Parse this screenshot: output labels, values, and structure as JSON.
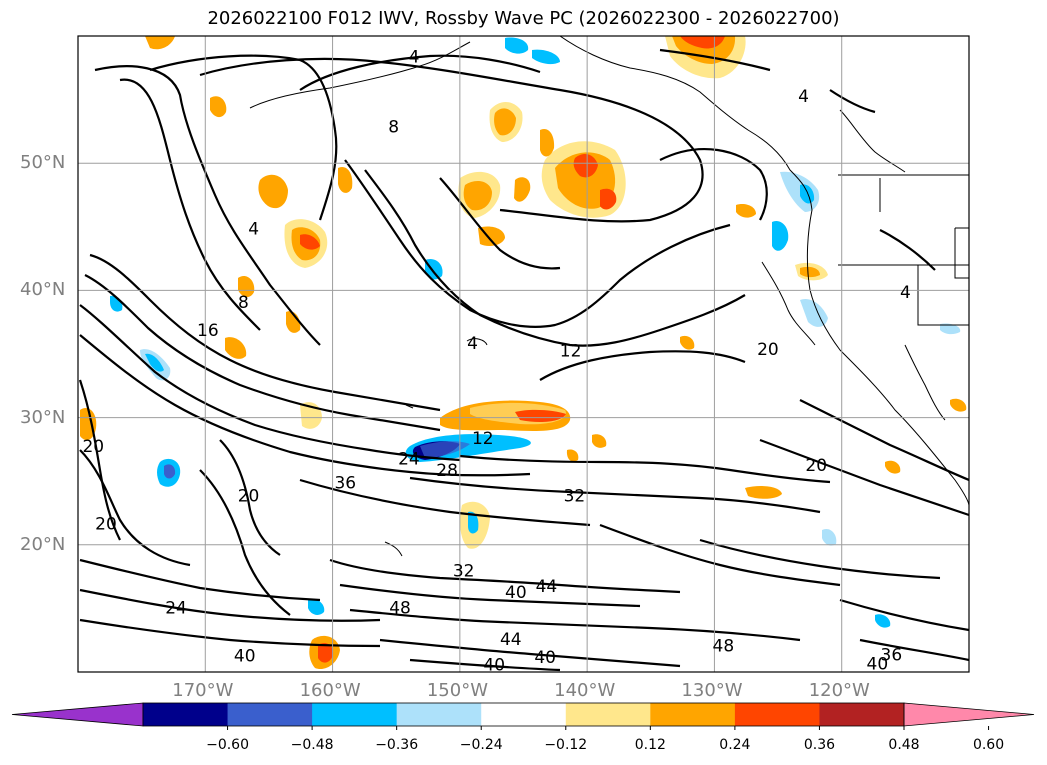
{
  "title": "2026022100 F012 IWV, Rossby Wave PC (2026022300 - 2026022700)",
  "lat_labels": [
    {
      "text": "50°N",
      "lat": 50
    },
    {
      "text": "40°N",
      "lat": 40
    },
    {
      "text": "30°N",
      "lat": 30
    },
    {
      "text": "20°N",
      "lat": 20
    }
  ],
  "lon_labels": [
    {
      "text": "170°W",
      "lon": -170
    },
    {
      "text": "160°W",
      "lon": -160
    },
    {
      "text": "150°W",
      "lon": -150
    },
    {
      "text": "140°W",
      "lon": -140
    },
    {
      "text": "130°W",
      "lon": -130
    },
    {
      "text": "120°W",
      "lon": -120
    }
  ],
  "map_extent": {
    "lon_min": -180,
    "lon_max": -110,
    "lat_min": 10,
    "lat_max": 60
  },
  "colorbar": {
    "colors": [
      "#9932CC",
      "#00008B",
      "#3A5FCD",
      "#00BFFF",
      "#ADE1FA",
      "#FFFFFF",
      "#FFE78C",
      "#FFA500",
      "#FF4500",
      "#B22222",
      "#FF88AA"
    ],
    "tick_labels": [
      "−0.60",
      "−0.48",
      "−0.36",
      "−0.24",
      "−0.12",
      "0.12",
      "0.24",
      "0.36",
      "0.48",
      "0.60"
    ]
  },
  "contour_labels": [
    {
      "text": "4",
      "lon": -153.6,
      "lat": 58.3
    },
    {
      "text": "8",
      "lon": -155.2,
      "lat": 52.8
    },
    {
      "text": "4",
      "lon": -166.2,
      "lat": 44.8
    },
    {
      "text": "8",
      "lon": -167.0,
      "lat": 39.0
    },
    {
      "text": "16",
      "lon": -169.8,
      "lat": 36.8
    },
    {
      "text": "4",
      "lon": -149.0,
      "lat": 35.8
    },
    {
      "text": "12",
      "lon": -141.3,
      "lat": 35.2
    },
    {
      "text": "20",
      "lon": -125.8,
      "lat": 35.3
    },
    {
      "text": "4",
      "lon": -123.0,
      "lat": 55.2
    },
    {
      "text": "4",
      "lon": -115.0,
      "lat": 39.8
    },
    {
      "text": "20",
      "lon": -178.8,
      "lat": 27.7
    },
    {
      "text": "12",
      "lon": -148.2,
      "lat": 28.3
    },
    {
      "text": "24",
      "lon": -154.0,
      "lat": 26.7
    },
    {
      "text": "28",
      "lon": -151.0,
      "lat": 25.8
    },
    {
      "text": "20",
      "lon": -122.0,
      "lat": 26.2
    },
    {
      "text": "36",
      "lon": -159.0,
      "lat": 24.8
    },
    {
      "text": "20",
      "lon": -166.6,
      "lat": 23.8
    },
    {
      "text": "32",
      "lon": -141.0,
      "lat": 23.8
    },
    {
      "text": "20",
      "lon": -177.8,
      "lat": 21.6
    },
    {
      "text": "32",
      "lon": -149.7,
      "lat": 17.9
    },
    {
      "text": "44",
      "lon": -143.2,
      "lat": 16.7
    },
    {
      "text": "40",
      "lon": -145.6,
      "lat": 16.2
    },
    {
      "text": "24",
      "lon": -172.3,
      "lat": 15.0
    },
    {
      "text": "48",
      "lon": -154.7,
      "lat": 15.0
    },
    {
      "text": "44",
      "lon": -146.0,
      "lat": 12.5
    },
    {
      "text": "48",
      "lon": -129.3,
      "lat": 12.0
    },
    {
      "text": "40",
      "lon": -166.9,
      "lat": 11.2
    },
    {
      "text": "40",
      "lon": -143.3,
      "lat": 11.1
    },
    {
      "text": "40",
      "lon": -147.3,
      "lat": 10.5
    },
    {
      "text": "36",
      "lon": -116.1,
      "lat": 11.3
    },
    {
      "text": "40",
      "lon": -117.2,
      "lat": 10.6
    }
  ]
}
